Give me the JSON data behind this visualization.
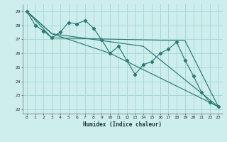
{
  "title": "",
  "xlabel": "Humidex (Indice chaleur)",
  "xlim": [
    -0.5,
    23.5
  ],
  "ylim": [
    21.7,
    29.5
  ],
  "xticks": [
    0,
    1,
    2,
    3,
    4,
    5,
    6,
    7,
    8,
    9,
    10,
    11,
    12,
    13,
    14,
    15,
    16,
    17,
    18,
    19,
    20,
    21,
    22,
    23
  ],
  "yticks": [
    22,
    23,
    24,
    25,
    26,
    27,
    28,
    29
  ],
  "bg_color": "#ceeeed",
  "grid_color": "#a8d8d8",
  "line_color": "#2a7a72",
  "line1": {
    "x": [
      0,
      1,
      2,
      3,
      4,
      5,
      6,
      7,
      8,
      9,
      10,
      11,
      12,
      13,
      14,
      15,
      16,
      17,
      18,
      19,
      20,
      21,
      22,
      23
    ],
    "y": [
      29,
      28,
      27.6,
      27.1,
      27.5,
      28.2,
      28.1,
      28.35,
      27.8,
      26.95,
      26.0,
      26.5,
      25.5,
      24.5,
      25.2,
      25.4,
      26.0,
      26.3,
      26.8,
      25.5,
      24.4,
      23.2,
      22.5,
      22.2
    ]
  },
  "line2": {
    "x": [
      0,
      3,
      19,
      23
    ],
    "y": [
      29,
      27.1,
      26.9,
      22.2
    ]
  },
  "line3": {
    "x": [
      0,
      3,
      14,
      23
    ],
    "y": [
      29,
      27.4,
      26.5,
      22.2
    ]
  },
  "line4": {
    "x": [
      0,
      3,
      10,
      23
    ],
    "y": [
      29,
      27.4,
      26.0,
      22.2
    ]
  }
}
